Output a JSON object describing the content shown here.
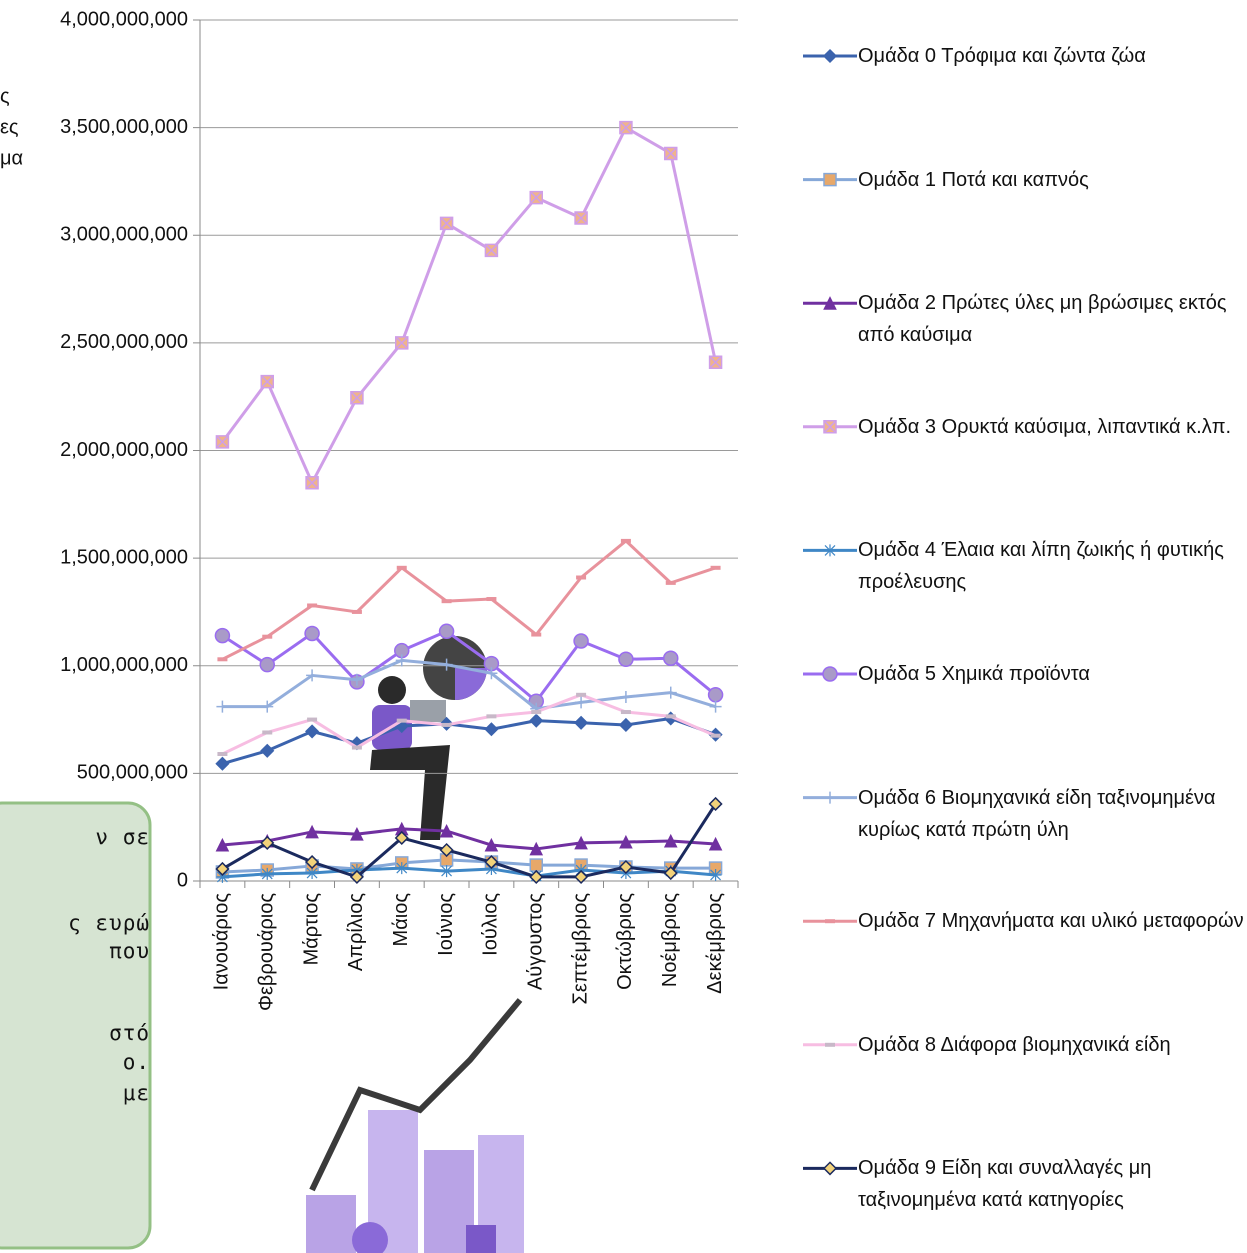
{
  "chart_data": {
    "type": "line",
    "ylabel_lines": [
      "ς",
      "ες",
      "μα"
    ],
    "categories": [
      "Ιανουάριος",
      "Φεβρουάριος",
      "Μάρτιος",
      "Απρίλιος",
      "Μάιος",
      "Ιούνιος",
      "Ιούλιος",
      "Αύγουστος",
      "Σεπτέμβριος",
      "Οκτώβριος",
      "Νοέμβριος",
      "Δεκέμβριος"
    ],
    "ylim": [
      0,
      4000000000
    ],
    "yticks": [
      0,
      {
        "value": 500000000,
        "label": "500,000,000"
      },
      {
        "value": 1000000000,
        "label": "1,000,000,000"
      },
      {
        "value": 1500000000,
        "label": "1,500,000,000"
      },
      {
        "value": 2000000000,
        "label": "2,000,000,000"
      },
      {
        "value": 2500000000,
        "label": "2,500,000,000"
      },
      {
        "value": 3000000000,
        "label": "3,000,000,000"
      },
      {
        "value": 3500000000,
        "label": "3,500,000,000"
      },
      {
        "value": 4000000000,
        "label": "4,000,000,000"
      }
    ],
    "grid": true,
    "legend": "right",
    "series": [
      {
        "name": "Ομάδα 0 Τρόφιμα και ζώντα ζώα",
        "color": "#3b63ad",
        "marker": "diamond",
        "marker_fill": "#3b63ad",
        "values": [
          545000000,
          605000000,
          695000000,
          640000000,
          720000000,
          730000000,
          705000000,
          745000000,
          735000000,
          725000000,
          755000000,
          680000000
        ]
      },
      {
        "name": "Ομάδα 1 Ποτά και καπνός",
        "color": "#86a8d8",
        "marker": "square",
        "marker_fill": "#e7a86a",
        "values": [
          42000000,
          51000000,
          70000000,
          56000000,
          84000000,
          98000000,
          88000000,
          74000000,
          74000000,
          65000000,
          60000000,
          60000000
        ]
      },
      {
        "name": "Ομάδα 2 Πρώτες ύλες μη βρώσιμες εκτός από καύσιμα",
        "color": "#7030a0",
        "marker": "triangle",
        "marker_fill": "#7030a0",
        "values": [
          167000000,
          186000000,
          228000000,
          218000000,
          242000000,
          232000000,
          167000000,
          149000000,
          177000000,
          181000000,
          186000000,
          172000000
        ]
      },
      {
        "name": "Ομάδα 3 Ορυκτά καύσιμα, λιπαντικά κ.λπ.",
        "color": "#cf9ee8",
        "marker": "xsquare",
        "marker_fill": "#f0b48a",
        "values": [
          2040000000,
          2320000000,
          1850000000,
          2245000000,
          2500000000,
          3055000000,
          2930000000,
          3175000000,
          3080000000,
          3500000000,
          3380000000,
          2410000000
        ]
      },
      {
        "name": "Ομάδα 4 Έλαια και λίπη ζωικής ή φυτικής προέλευσης",
        "color": "#3f87c6",
        "marker": "star",
        "marker_fill": "#3f87c6",
        "values": [
          19000000,
          33000000,
          37000000,
          51000000,
          60000000,
          46000000,
          56000000,
          23000000,
          51000000,
          37000000,
          46000000,
          28000000
        ]
      },
      {
        "name": "Ομάδα 5 Χημικά προϊόντα",
        "color": "#9a6cf0",
        "marker": "circle",
        "marker_fill": "#a99ac8",
        "values": [
          1140000000,
          1005000000,
          1150000000,
          925000000,
          1070000000,
          1160000000,
          1010000000,
          835000000,
          1115000000,
          1030000000,
          1035000000,
          865000000
        ]
      },
      {
        "name": "Ομάδα 6 Βιομηχανικά είδη ταξινομημένα κυρίως κατά πρώτη ύλη",
        "color": "#93aedc",
        "marker": "plus",
        "marker_fill": "#93aedc",
        "values": [
          810000000,
          810000000,
          955000000,
          935000000,
          1025000000,
          1005000000,
          965000000,
          800000000,
          830000000,
          855000000,
          875000000,
          810000000
        ]
      },
      {
        "name": "Ομάδα 7 Μηχανήματα και υλικό μεταφορών",
        "color": "#e8929c",
        "marker": "dash",
        "marker_fill": "#e8929c",
        "values": [
          1030000000,
          1135000000,
          1280000000,
          1250000000,
          1455000000,
          1300000000,
          1310000000,
          1145000000,
          1410000000,
          1580000000,
          1385000000,
          1455000000
        ]
      },
      {
        "name": "Ομάδα 8 Διάφορα βιομηχανικά είδη",
        "color": "#f7bde2",
        "marker": "dash",
        "marker_fill": "#c8b8c8",
        "values": [
          590000000,
          690000000,
          750000000,
          620000000,
          745000000,
          725000000,
          765000000,
          785000000,
          865000000,
          785000000,
          765000000,
          675000000
        ]
      },
      {
        "name": "Ομάδα 9 Είδη και συναλλαγές μη ταξινομημένα κατά κατηγορίες",
        "color": "#1b2a5e",
        "marker": "diamond",
        "marker_fill": "#f2d27a",
        "values": [
          56000000,
          177000000,
          88000000,
          19000000,
          200000000,
          144000000,
          88000000,
          19000000,
          19000000,
          65000000,
          37000000,
          358000000
        ]
      }
    ]
  },
  "side_note": {
    "lines": [
      "ν σε",
      "ς ευρώ",
      "που",
      "στό",
      "ο.",
      "με"
    ]
  }
}
